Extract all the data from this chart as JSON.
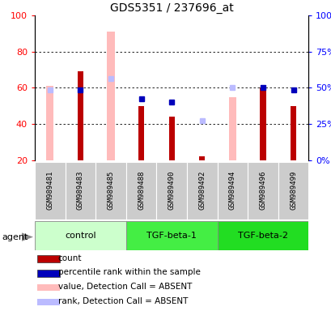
{
  "title": "GDS5351 / 237696_at",
  "samples": [
    "GSM989481",
    "GSM989483",
    "GSM989485",
    "GSM989488",
    "GSM989490",
    "GSM989492",
    "GSM989494",
    "GSM989496",
    "GSM989499"
  ],
  "groups": [
    {
      "name": "control",
      "color": "#ccffcc",
      "indices": [
        0,
        1,
        2
      ]
    },
    {
      "name": "TGF-beta-1",
      "color": "#44ee44",
      "indices": [
        3,
        4,
        5
      ]
    },
    {
      "name": "TGF-beta-2",
      "color": "#22dd22",
      "indices": [
        6,
        7,
        8
      ]
    }
  ],
  "count_values": [
    null,
    69,
    null,
    50,
    44,
    22,
    null,
    60,
    50
  ],
  "percentile_rank": [
    null,
    59,
    null,
    54,
    52,
    null,
    null,
    60,
    59
  ],
  "absent_value": [
    61,
    null,
    91,
    null,
    null,
    null,
    55,
    null,
    null
  ],
  "absent_rank": [
    59,
    null,
    65,
    null,
    null,
    42,
    60,
    null,
    null
  ],
  "ylim_left": [
    20,
    100
  ],
  "ylim_right": [
    0,
    100
  ],
  "yticks_left": [
    20,
    40,
    60,
    80,
    100
  ],
  "yticks_right": [
    0,
    25,
    50,
    75,
    100
  ],
  "count_color": "#bb0000",
  "percentile_color": "#0000bb",
  "absent_value_color": "#ffbbbb",
  "absent_rank_color": "#bbbbff",
  "legend_items": [
    {
      "color": "#bb0000",
      "label": "count"
    },
    {
      "color": "#0000bb",
      "label": "percentile rank within the sample"
    },
    {
      "color": "#ffbbbb",
      "label": "value, Detection Call = ABSENT"
    },
    {
      "color": "#bbbbff",
      "label": "rank, Detection Call = ABSENT"
    }
  ]
}
